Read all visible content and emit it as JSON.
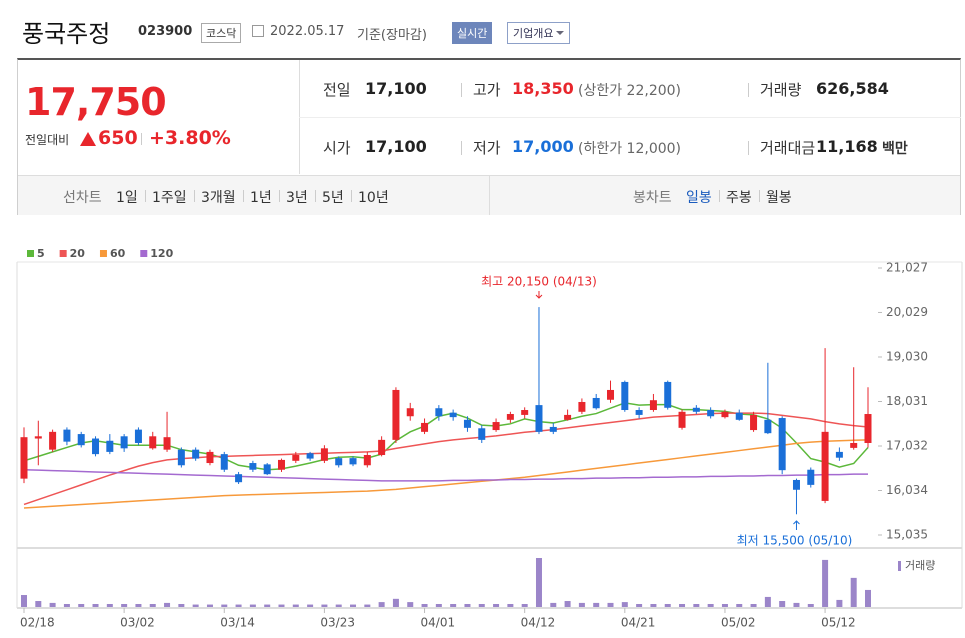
{
  "header": {
    "title": "풍국주정",
    "code": "023900",
    "market": "코스닥",
    "date": "2022.05.17",
    "date_note": "기준(장마감)",
    "realtime": "실시간",
    "company_info": "기업개요"
  },
  "summary": {
    "price": "17,750",
    "change_label": "전일대비",
    "change": "650",
    "change_rate": "+3.80%",
    "rows": [
      [
        {
          "label": "전일",
          "value": "17,100"
        },
        {
          "label": "고가",
          "value": "18,350",
          "note": "(상한가 22,200)"
        },
        {
          "label": "거래량",
          "value": "626,584"
        }
      ],
      [
        {
          "label": "시가",
          "value": "17,100"
        },
        {
          "label": "저가",
          "value": "17,000",
          "note": "(하한가 12,000)"
        },
        {
          "label": "거래대금",
          "value": "11,168",
          "unit": "백만"
        }
      ]
    ]
  },
  "nav": {
    "line_label": "선차트",
    "line_items": [
      "1일",
      "1주일",
      "3개월",
      "1년",
      "3년",
      "5년",
      "10년"
    ],
    "candle_label": "봉차트",
    "candle_items": [
      "일봉",
      "주봉",
      "월봉"
    ]
  },
  "chart_data": {
    "type": "candlestick",
    "categories": [
      "02/18",
      null,
      null,
      null,
      null,
      null,
      null,
      "03/02",
      null,
      null,
      null,
      null,
      null,
      null,
      "03/14",
      null,
      null,
      null,
      null,
      null,
      null,
      "03/23",
      null,
      null,
      null,
      null,
      null,
      null,
      "04/01",
      null,
      null,
      null,
      null,
      null,
      null,
      "04/12",
      null,
      null,
      null,
      null,
      null,
      null,
      "04/21",
      null,
      null,
      null,
      null,
      null,
      null,
      "05/02",
      null,
      null,
      null,
      null,
      null,
      null,
      "05/12",
      null,
      null,
      null
    ],
    "open": [
      16300,
      17200,
      16950,
      17400,
      17300,
      17200,
      17150,
      17250,
      17400,
      16980,
      16950,
      16950,
      16950,
      16650,
      16850,
      16400,
      16650,
      16620,
      16500,
      16700,
      16870,
      16700,
      16760,
      16760,
      16600,
      16830,
      17170,
      17700,
      17350,
      17880,
      17780,
      17620,
      17430,
      17390,
      17620,
      17730,
      17950,
      17460,
      17620,
      17800,
      18110,
      18070,
      18470,
      17840,
      17840,
      18470,
      17440,
      17890,
      17840,
      17680,
      17780,
      17390,
      17620,
      17660,
      16270,
      16500,
      15800,
      16900,
      16990,
      17100
    ],
    "high": [
      17450,
      17600,
      17400,
      17450,
      17350,
      17250,
      17300,
      17300,
      17450,
      17350,
      17800,
      17000,
      17000,
      16950,
      16900,
      16450,
      16700,
      16650,
      16750,
      16900,
      16900,
      17050,
      16800,
      16800,
      16900,
      17250,
      18350,
      18000,
      17650,
      17950,
      17850,
      17700,
      17500,
      17650,
      17800,
      17900,
      20150,
      17550,
      17850,
      18100,
      18200,
      18500,
      18500,
      17900,
      18200,
      18500,
      17850,
      17950,
      17900,
      17850,
      17850,
      17800,
      18900,
      17700,
      16300,
      16550,
      19230,
      17000,
      18800,
      18350
    ],
    "low": [
      16200,
      16600,
      16900,
      17050,
      17000,
      16800,
      16850,
      16900,
      17050,
      16950,
      16900,
      16550,
      16700,
      16600,
      16450,
      16180,
      16450,
      16380,
      16450,
      16650,
      16700,
      16650,
      16550,
      16580,
      16550,
      16800,
      17100,
      17600,
      17300,
      17600,
      17600,
      17350,
      17100,
      17350,
      17550,
      17650,
      17300,
      17300,
      17600,
      17750,
      17850,
      18000,
      17800,
      17650,
      17800,
      17850,
      17400,
      17750,
      17650,
      17650,
      17600,
      17350,
      17300,
      16400,
      15500,
      16100,
      15750,
      16700,
      16950,
      17000
    ],
    "close": [
      17230,
      17250,
      17350,
      17130,
      17050,
      16850,
      16900,
      16980,
      17100,
      17250,
      17230,
      16600,
      16750,
      16900,
      16500,
      16220,
      16500,
      16400,
      16720,
      16830,
      16750,
      16980,
      16600,
      16620,
      16830,
      17170,
      18290,
      17880,
      17550,
      17700,
      17680,
      17440,
      17170,
      17570,
      17750,
      17840,
      17350,
      17350,
      17730,
      18020,
      17880,
      18290,
      17840,
      17730,
      18060,
      17890,
      17800,
      17800,
      17700,
      17800,
      17620,
      17730,
      17320,
      16490,
      16050,
      16160,
      17350,
      16770,
      17100,
      17750
    ],
    "volume": [
      440000,
      220000,
      150000,
      110000,
      110000,
      110000,
      110000,
      110000,
      110000,
      110000,
      150000,
      110000,
      90000,
      90000,
      90000,
      90000,
      90000,
      90000,
      90000,
      90000,
      90000,
      90000,
      90000,
      90000,
      90000,
      180000,
      300000,
      180000,
      110000,
      110000,
      110000,
      110000,
      110000,
      110000,
      110000,
      110000,
      1800000,
      150000,
      220000,
      150000,
      150000,
      150000,
      180000,
      110000,
      110000,
      110000,
      110000,
      110000,
      110000,
      110000,
      110000,
      110000,
      370000,
      220000,
      150000,
      110000,
      1730000,
      260000,
      1070000,
      626584
    ],
    "volume_label": "거래량",
    "volume_color": "#9b85c9",
    "up_color": "#e8262c",
    "down_color": "#1a6fd8",
    "ma_series": [
      {
        "name": "5",
        "color": "#5cb83a",
        "values": [
          16700,
          16800,
          16900,
          17000,
          17100,
          17150,
          17100,
          17050,
          17050,
          17050,
          17050,
          16950,
          16900,
          16850,
          16750,
          16600,
          16550,
          16500,
          16520,
          16580,
          16650,
          16730,
          16780,
          16790,
          16760,
          16850,
          17150,
          17350,
          17480,
          17700,
          17770,
          17660,
          17500,
          17480,
          17530,
          17640,
          17580,
          17550,
          17620,
          17700,
          17760,
          17880,
          18000,
          17950,
          17960,
          17960,
          17850,
          17850,
          17830,
          17810,
          17750,
          17730,
          17640,
          17430,
          17100,
          16750,
          16670,
          16560,
          16640,
          17000
        ]
      },
      {
        "name": "20",
        "color": "#ee5555",
        "values": [
          15720,
          15830,
          15940,
          16050,
          16160,
          16270,
          16380,
          16480,
          16580,
          16660,
          16720,
          16750,
          16770,
          16790,
          16800,
          16810,
          16820,
          16830,
          16840,
          16850,
          16860,
          16870,
          16880,
          16890,
          16900,
          16920,
          16980,
          17030,
          17080,
          17130,
          17170,
          17200,
          17230,
          17260,
          17300,
          17340,
          17370,
          17400,
          17440,
          17480,
          17520,
          17560,
          17600,
          17640,
          17680,
          17700,
          17720,
          17740,
          17760,
          17770,
          17770,
          17770,
          17760,
          17720,
          17680,
          17640,
          17580,
          17530,
          17490,
          17460
        ]
      },
      {
        "name": "60",
        "color": "#f7993a",
        "values": [
          15640,
          15660,
          15680,
          15700,
          15720,
          15740,
          15760,
          15780,
          15800,
          15820,
          15840,
          15860,
          15880,
          15900,
          15920,
          15930,
          15940,
          15950,
          15960,
          15970,
          15980,
          15990,
          16000,
          16010,
          16020,
          16040,
          16060,
          16090,
          16120,
          16150,
          16180,
          16210,
          16240,
          16270,
          16300,
          16330,
          16370,
          16410,
          16450,
          16490,
          16530,
          16570,
          16610,
          16650,
          16690,
          16730,
          16770,
          16810,
          16850,
          16890,
          16930,
          16970,
          17010,
          17050,
          17090,
          17120,
          17140,
          17150,
          17160,
          17170
        ]
      },
      {
        "name": "120",
        "color": "#a46ad0",
        "values": [
          16500,
          16490,
          16480,
          16470,
          16460,
          16450,
          16440,
          16430,
          16420,
          16410,
          16400,
          16390,
          16380,
          16370,
          16360,
          16350,
          16340,
          16330,
          16320,
          16310,
          16300,
          16290,
          16280,
          16270,
          16260,
          16250,
          16250,
          16250,
          16250,
          16250,
          16260,
          16260,
          16270,
          16270,
          16280,
          16280,
          16290,
          16290,
          16300,
          16300,
          16310,
          16310,
          16320,
          16320,
          16330,
          16330,
          16340,
          16340,
          16350,
          16350,
          16360,
          16360,
          16370,
          16370,
          16380,
          16380,
          16390,
          16390,
          16400,
          16400
        ]
      }
    ],
    "ylim": [
      15035,
      21027
    ],
    "yticks": [
      {
        "value": 21027,
        "label": "21,027"
      },
      {
        "value": 20029,
        "label": "20,029"
      },
      {
        "value": 19030,
        "label": "19,030"
      },
      {
        "value": 18031,
        "label": "18,031"
      },
      {
        "value": 17032,
        "label": "17,032"
      },
      {
        "value": 16034,
        "label": "16,034"
      },
      {
        "value": 15035,
        "label": "15,035"
      }
    ],
    "max_annotation": "최고 20,150 (04/13)",
    "min_annotation": "최저 15,500 (05/10)",
    "max_color": "#e8262c",
    "min_color": "#1a6fd8"
  }
}
